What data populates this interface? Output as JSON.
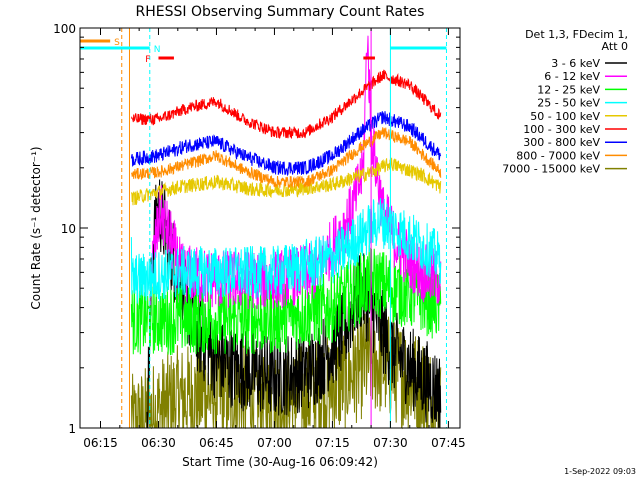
{
  "chart_data": {
    "type": "line",
    "title": "RHESSI Observing Summary Count Rates",
    "xlabel": "Start Time (30-Aug-16 06:09:42)",
    "ylabel": "Count Rate (s⁻¹ detector⁻¹)",
    "yscale": "log",
    "ylim": [
      1,
      100
    ],
    "xlim": [
      "06:09:42",
      "07:48:00"
    ],
    "x_ticks": [
      "06:15",
      "06:30",
      "06:45",
      "07:00",
      "07:15",
      "07:30",
      "07:45"
    ],
    "y_ticks": [
      "1",
      "10",
      "100"
    ],
    "legend_position": "right",
    "legend_header": [
      "Det 1,3, FDecim 1,",
      "Att 0"
    ],
    "timestamp": "1-Sep-2022 09:03",
    "data_window": [
      "06:22:30",
      "07:44:30"
    ],
    "series": [
      {
        "name": "3 - 6 keV",
        "color": "#000000",
        "values": [
          {
            "t": "06:27:00",
            "v": 1.0
          },
          {
            "t": "06:28:30",
            "v": 8.0
          },
          {
            "t": "06:30:00",
            "v": 13.0
          },
          {
            "t": "06:33:00",
            "v": 8.0
          },
          {
            "t": "06:36:00",
            "v": 5.0
          },
          {
            "t": "06:40:00",
            "v": 3.0
          },
          {
            "t": "06:45:00",
            "v": 2.2
          },
          {
            "t": "06:50:00",
            "v": 2.0
          },
          {
            "t": "07:00:00",
            "v": 1.8
          },
          {
            "t": "07:10:00",
            "v": 2.0
          },
          {
            "t": "07:18:00",
            "v": 3.0
          },
          {
            "t": "07:22:00",
            "v": 5.0
          },
          {
            "t": "07:25:00",
            "v": 4.0
          },
          {
            "t": "07:30:00",
            "v": 2.5
          },
          {
            "t": "07:38:00",
            "v": 1.8
          },
          {
            "t": "07:43:00",
            "v": 1.5
          }
        ]
      },
      {
        "name": "6 - 12 keV",
        "color": "#ff00ff",
        "values": [
          {
            "t": "06:28:00",
            "v": 6.0
          },
          {
            "t": "06:30:30",
            "v": 12.0
          },
          {
            "t": "06:33:00",
            "v": 9.0
          },
          {
            "t": "06:36:00",
            "v": 6.0
          },
          {
            "t": "06:45:00",
            "v": 5.5
          },
          {
            "t": "07:00:00",
            "v": 5.5
          },
          {
            "t": "07:10:00",
            "v": 6.0
          },
          {
            "t": "07:15:00",
            "v": 8.0
          },
          {
            "t": "07:20:00",
            "v": 12.0
          },
          {
            "t": "07:23:00",
            "v": 20.0
          },
          {
            "t": "07:24:00",
            "v": 95.0
          },
          {
            "t": "07:25:00",
            "v": 30.0
          },
          {
            "t": "07:28:00",
            "v": 12.0
          },
          {
            "t": "07:32:00",
            "v": 8.0
          },
          {
            "t": "07:38:00",
            "v": 6.0
          },
          {
            "t": "07:43:00",
            "v": 5.5
          }
        ]
      },
      {
        "name": "12 - 25 keV",
        "color": "#00ff00",
        "values": [
          {
            "t": "06:23:00",
            "v": 3.5
          },
          {
            "t": "06:35:00",
            "v": 3.5
          },
          {
            "t": "06:45:00",
            "v": 3.5
          },
          {
            "t": "07:00:00",
            "v": 3.5
          },
          {
            "t": "07:15:00",
            "v": 4.0
          },
          {
            "t": "07:25:00",
            "v": 5.5
          },
          {
            "t": "07:30:00",
            "v": 5.0
          },
          {
            "t": "07:38:00",
            "v": 4.5
          },
          {
            "t": "07:43:00",
            "v": 4.0
          }
        ]
      },
      {
        "name": "25 - 50 keV",
        "color": "#00ffff",
        "values": [
          {
            "t": "06:23:00",
            "v": 5.5
          },
          {
            "t": "06:35:00",
            "v": 6.0
          },
          {
            "t": "06:45:00",
            "v": 6.0
          },
          {
            "t": "07:00:00",
            "v": 6.0
          },
          {
            "t": "07:15:00",
            "v": 7.0
          },
          {
            "t": "07:22:00",
            "v": 9.0
          },
          {
            "t": "07:27:00",
            "v": 11.0
          },
          {
            "t": "07:35:00",
            "v": 9.0
          },
          {
            "t": "07:43:00",
            "v": 7.0
          }
        ]
      },
      {
        "name": "50 - 100 keV",
        "color": "#e6c800",
        "values": [
          {
            "t": "06:23:00",
            "v": 14.0
          },
          {
            "t": "06:35:00",
            "v": 16.0
          },
          {
            "t": "06:45:00",
            "v": 17.0
          },
          {
            "t": "06:55:00",
            "v": 15.5
          },
          {
            "t": "07:05:00",
            "v": 15.5
          },
          {
            "t": "07:15:00",
            "v": 16.5
          },
          {
            "t": "07:25:00",
            "v": 19.0
          },
          {
            "t": "07:30:00",
            "v": 21.0
          },
          {
            "t": "07:38:00",
            "v": 18.5
          },
          {
            "t": "07:43:00",
            "v": 16.0
          }
        ]
      },
      {
        "name": "100 - 300 keV",
        "color": "#ff0000",
        "values": [
          {
            "t": "06:23:00",
            "v": 35.0
          },
          {
            "t": "06:30:00",
            "v": 35.0
          },
          {
            "t": "06:38:00",
            "v": 40.0
          },
          {
            "t": "06:45:00",
            "v": 43.0
          },
          {
            "t": "06:52:00",
            "v": 35.0
          },
          {
            "t": "07:00:00",
            "v": 30.0
          },
          {
            "t": "07:08:00",
            "v": 30.0
          },
          {
            "t": "07:15:00",
            "v": 36.0
          },
          {
            "t": "07:22:00",
            "v": 47.0
          },
          {
            "t": "07:28:00",
            "v": 58.0
          },
          {
            "t": "07:35:00",
            "v": 52.0
          },
          {
            "t": "07:43:00",
            "v": 36.0
          }
        ]
      },
      {
        "name": "300 - 800 keV",
        "color": "#0000ff",
        "values": [
          {
            "t": "06:23:00",
            "v": 22.0
          },
          {
            "t": "06:30:00",
            "v": 23.0
          },
          {
            "t": "06:38:00",
            "v": 26.0
          },
          {
            "t": "06:45:00",
            "v": 27.0
          },
          {
            "t": "06:52:00",
            "v": 23.0
          },
          {
            "t": "07:00:00",
            "v": 20.0
          },
          {
            "t": "07:08:00",
            "v": 20.0
          },
          {
            "t": "07:15:00",
            "v": 23.0
          },
          {
            "t": "07:22:00",
            "v": 30.0
          },
          {
            "t": "07:28:00",
            "v": 36.0
          },
          {
            "t": "07:35:00",
            "v": 32.0
          },
          {
            "t": "07:43:00",
            "v": 23.0
          }
        ]
      },
      {
        "name": "800 - 7000 keV",
        "color": "#ff8c00",
        "values": [
          {
            "t": "06:23:00",
            "v": 18.5
          },
          {
            "t": "06:30:00",
            "v": 19.0
          },
          {
            "t": "06:38:00",
            "v": 21.0
          },
          {
            "t": "06:45:00",
            "v": 23.0
          },
          {
            "t": "06:52:00",
            "v": 19.5
          },
          {
            "t": "07:00:00",
            "v": 17.0
          },
          {
            "t": "07:08:00",
            "v": 17.0
          },
          {
            "t": "07:15:00",
            "v": 19.5
          },
          {
            "t": "07:22:00",
            "v": 25.0
          },
          {
            "t": "07:28:00",
            "v": 30.0
          },
          {
            "t": "07:35:00",
            "v": 27.0
          },
          {
            "t": "07:43:00",
            "v": 19.0
          }
        ]
      },
      {
        "name": "7000 - 15000 keV",
        "color": "#808000",
        "values": [
          {
            "t": "06:23:00",
            "v": 1.0
          },
          {
            "t": "06:35:00",
            "v": 1.4
          },
          {
            "t": "06:45:00",
            "v": 1.5
          },
          {
            "t": "07:00:00",
            "v": 1.3
          },
          {
            "t": "07:15:00",
            "v": 1.6
          },
          {
            "t": "07:25:00",
            "v": 2.2
          },
          {
            "t": "07:30:00",
            "v": 2.0
          },
          {
            "t": "07:38:00",
            "v": 1.6
          },
          {
            "t": "07:43:00",
            "v": 1.2
          }
        ]
      }
    ],
    "flags": [
      {
        "label": "S",
        "color": "#ff8c00",
        "start": "06:09:42",
        "end": "06:17:30"
      },
      {
        "label": "N",
        "color": "#00ffff",
        "start": "06:09:42",
        "end": "06:27:45"
      },
      {
        "label": "N",
        "color": "#00ffff",
        "start": "07:30:00",
        "end": "07:44:30"
      },
      {
        "label": "F",
        "color": "#ff0000",
        "start": "06:30:00",
        "end": "06:34:00"
      },
      {
        "label": "F",
        "color": "#ff0000",
        "start": "07:23:00",
        "end": "07:26:00"
      }
    ],
    "markers": [
      {
        "t": "06:20:30",
        "color": "#ff8c00",
        "style": "dashed"
      },
      {
        "t": "06:22:30",
        "color": "#ff8c00",
        "style": "solid"
      },
      {
        "t": "06:27:45",
        "color": "#00ffff",
        "style": "dashed"
      },
      {
        "t": "07:25:00",
        "color": "#ff00ff",
        "style": "solid"
      },
      {
        "t": "07:30:00",
        "color": "#00ffff",
        "style": "solid"
      },
      {
        "t": "07:44:30",
        "color": "#00ffff",
        "style": "dashed"
      }
    ]
  }
}
